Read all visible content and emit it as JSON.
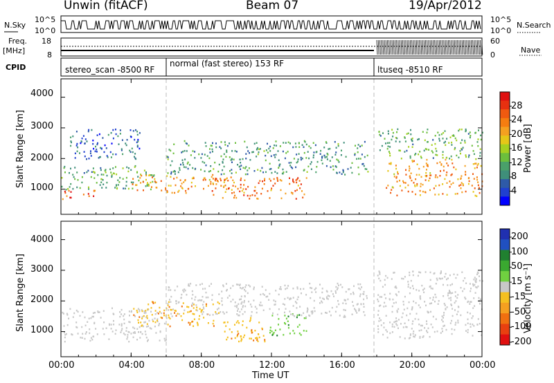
{
  "header": {
    "station": "Unwin (fitACF)",
    "beam": "Beam 07",
    "date": "19/Apr/2012"
  },
  "noise_panel": {
    "left_label": "N.Sky",
    "right_label": "N.Search",
    "left_ticks": [
      "10^5",
      "10^0"
    ],
    "right_ticks": [
      "10^5",
      "10^0"
    ]
  },
  "freq_panel": {
    "left_label_1": "Freq.",
    "left_label_2": "[MHz]",
    "left_ticks": [
      "18",
      "8"
    ],
    "right_label": "Nave",
    "right_ticks": [
      "60",
      "0"
    ]
  },
  "cpid_panel": {
    "label": "CPID",
    "segments": [
      {
        "text": "stereo_scan -8500 RF",
        "start_hour": 0,
        "end_hour": 6
      },
      {
        "text": "normal (fast stereo) 153 RF",
        "start_hour": 6,
        "end_hour": 18
      },
      {
        "text": "ltuseq -8510 RF",
        "start_hour": 18,
        "end_hour": 24
      }
    ]
  },
  "x_axis": {
    "label": "Time UT",
    "ticks": [
      "00:00",
      "04:00",
      "08:00",
      "12:00",
      "16:00",
      "20:00",
      "00:00"
    ],
    "range_hours": [
      0,
      24
    ]
  },
  "y_axis": {
    "label": "Slant Range [km]",
    "ticks": [
      "1000",
      "2000",
      "3000",
      "4000"
    ],
    "range_km": [
      180,
      4600
    ]
  },
  "power_colorbar": {
    "label": "Power [dB]",
    "ticks": [
      "4",
      "8",
      "12",
      "16",
      "20",
      "24",
      "28"
    ],
    "range": [
      0,
      32
    ],
    "colors": [
      "#0000ff",
      "#2040d0",
      "#2e5aa8",
      "#3f8f7a",
      "#4aa06a",
      "#6cbf3c",
      "#a6d020",
      "#e6c618",
      "#f5a020",
      "#f57d10",
      "#f05a10",
      "#e83010",
      "#e01010"
    ]
  },
  "velocity_colorbar": {
    "label": "Velocity [m s⁻¹]",
    "ticks": [
      "200",
      "100",
      "50",
      "15",
      "-15",
      "-50",
      "-100",
      "-200"
    ],
    "colors": [
      "#2030b0",
      "#2050c0",
      "#208030",
      "#3aa830",
      "#70d040",
      "#c8c8c8",
      "#f5c020",
      "#f5a020",
      "#f07010",
      "#e84010",
      "#e01010"
    ]
  },
  "chart_data": {
    "type": "heatmap",
    "title": "Unwin (fitACF) Beam 07 19/Apr/2012",
    "xlabel": "Time UT",
    "ylabel": "Slant Range [km]",
    "xlim": [
      0,
      24
    ],
    "ylim": [
      180,
      4600
    ],
    "panels": [
      {
        "name": "Power [dB]",
        "regions": [
          {
            "t_start": 0.0,
            "t_end": 2.0,
            "range_low": 700,
            "range_high": 1000,
            "value": 26
          },
          {
            "t_start": 0.0,
            "t_end": 5.5,
            "range_low": 1000,
            "range_high": 1800,
            "value": 12
          },
          {
            "t_start": 0.5,
            "t_end": 4.5,
            "range_low": 2000,
            "range_high": 3000,
            "value": 6
          },
          {
            "t_start": 4.0,
            "t_end": 10.0,
            "range_low": 900,
            "range_high": 1500,
            "value": 22
          },
          {
            "t_start": 8.5,
            "t_end": 14.0,
            "range_low": 700,
            "range_high": 1400,
            "value": 24
          },
          {
            "t_start": 6.0,
            "t_end": 17.5,
            "range_low": 1500,
            "range_high": 2600,
            "value": 10
          },
          {
            "t_start": 18.5,
            "t_end": 24.0,
            "range_low": 800,
            "range_high": 2000,
            "value": 22
          },
          {
            "t_start": 18.0,
            "t_end": 24.0,
            "range_low": 2000,
            "range_high": 3000,
            "value": 12
          }
        ]
      },
      {
        "name": "Velocity [m s-1]",
        "regions": [
          {
            "t_start": 0.0,
            "t_end": 6.0,
            "range_low": 700,
            "range_high": 1800,
            "value": 0
          },
          {
            "t_start": 4.0,
            "t_end": 9.0,
            "range_low": 1200,
            "range_high": 2000,
            "value": -40
          },
          {
            "t_start": 9.0,
            "t_end": 11.8,
            "range_low": 700,
            "range_high": 1500,
            "value": -40
          },
          {
            "t_start": 11.8,
            "t_end": 14.0,
            "range_low": 900,
            "range_high": 1600,
            "value": 40
          },
          {
            "t_start": 6.0,
            "t_end": 17.5,
            "range_low": 1500,
            "range_high": 2600,
            "value": 0
          },
          {
            "t_start": 18.0,
            "t_end": 24.0,
            "range_low": 800,
            "range_high": 3000,
            "value": 0
          }
        ]
      }
    ]
  }
}
